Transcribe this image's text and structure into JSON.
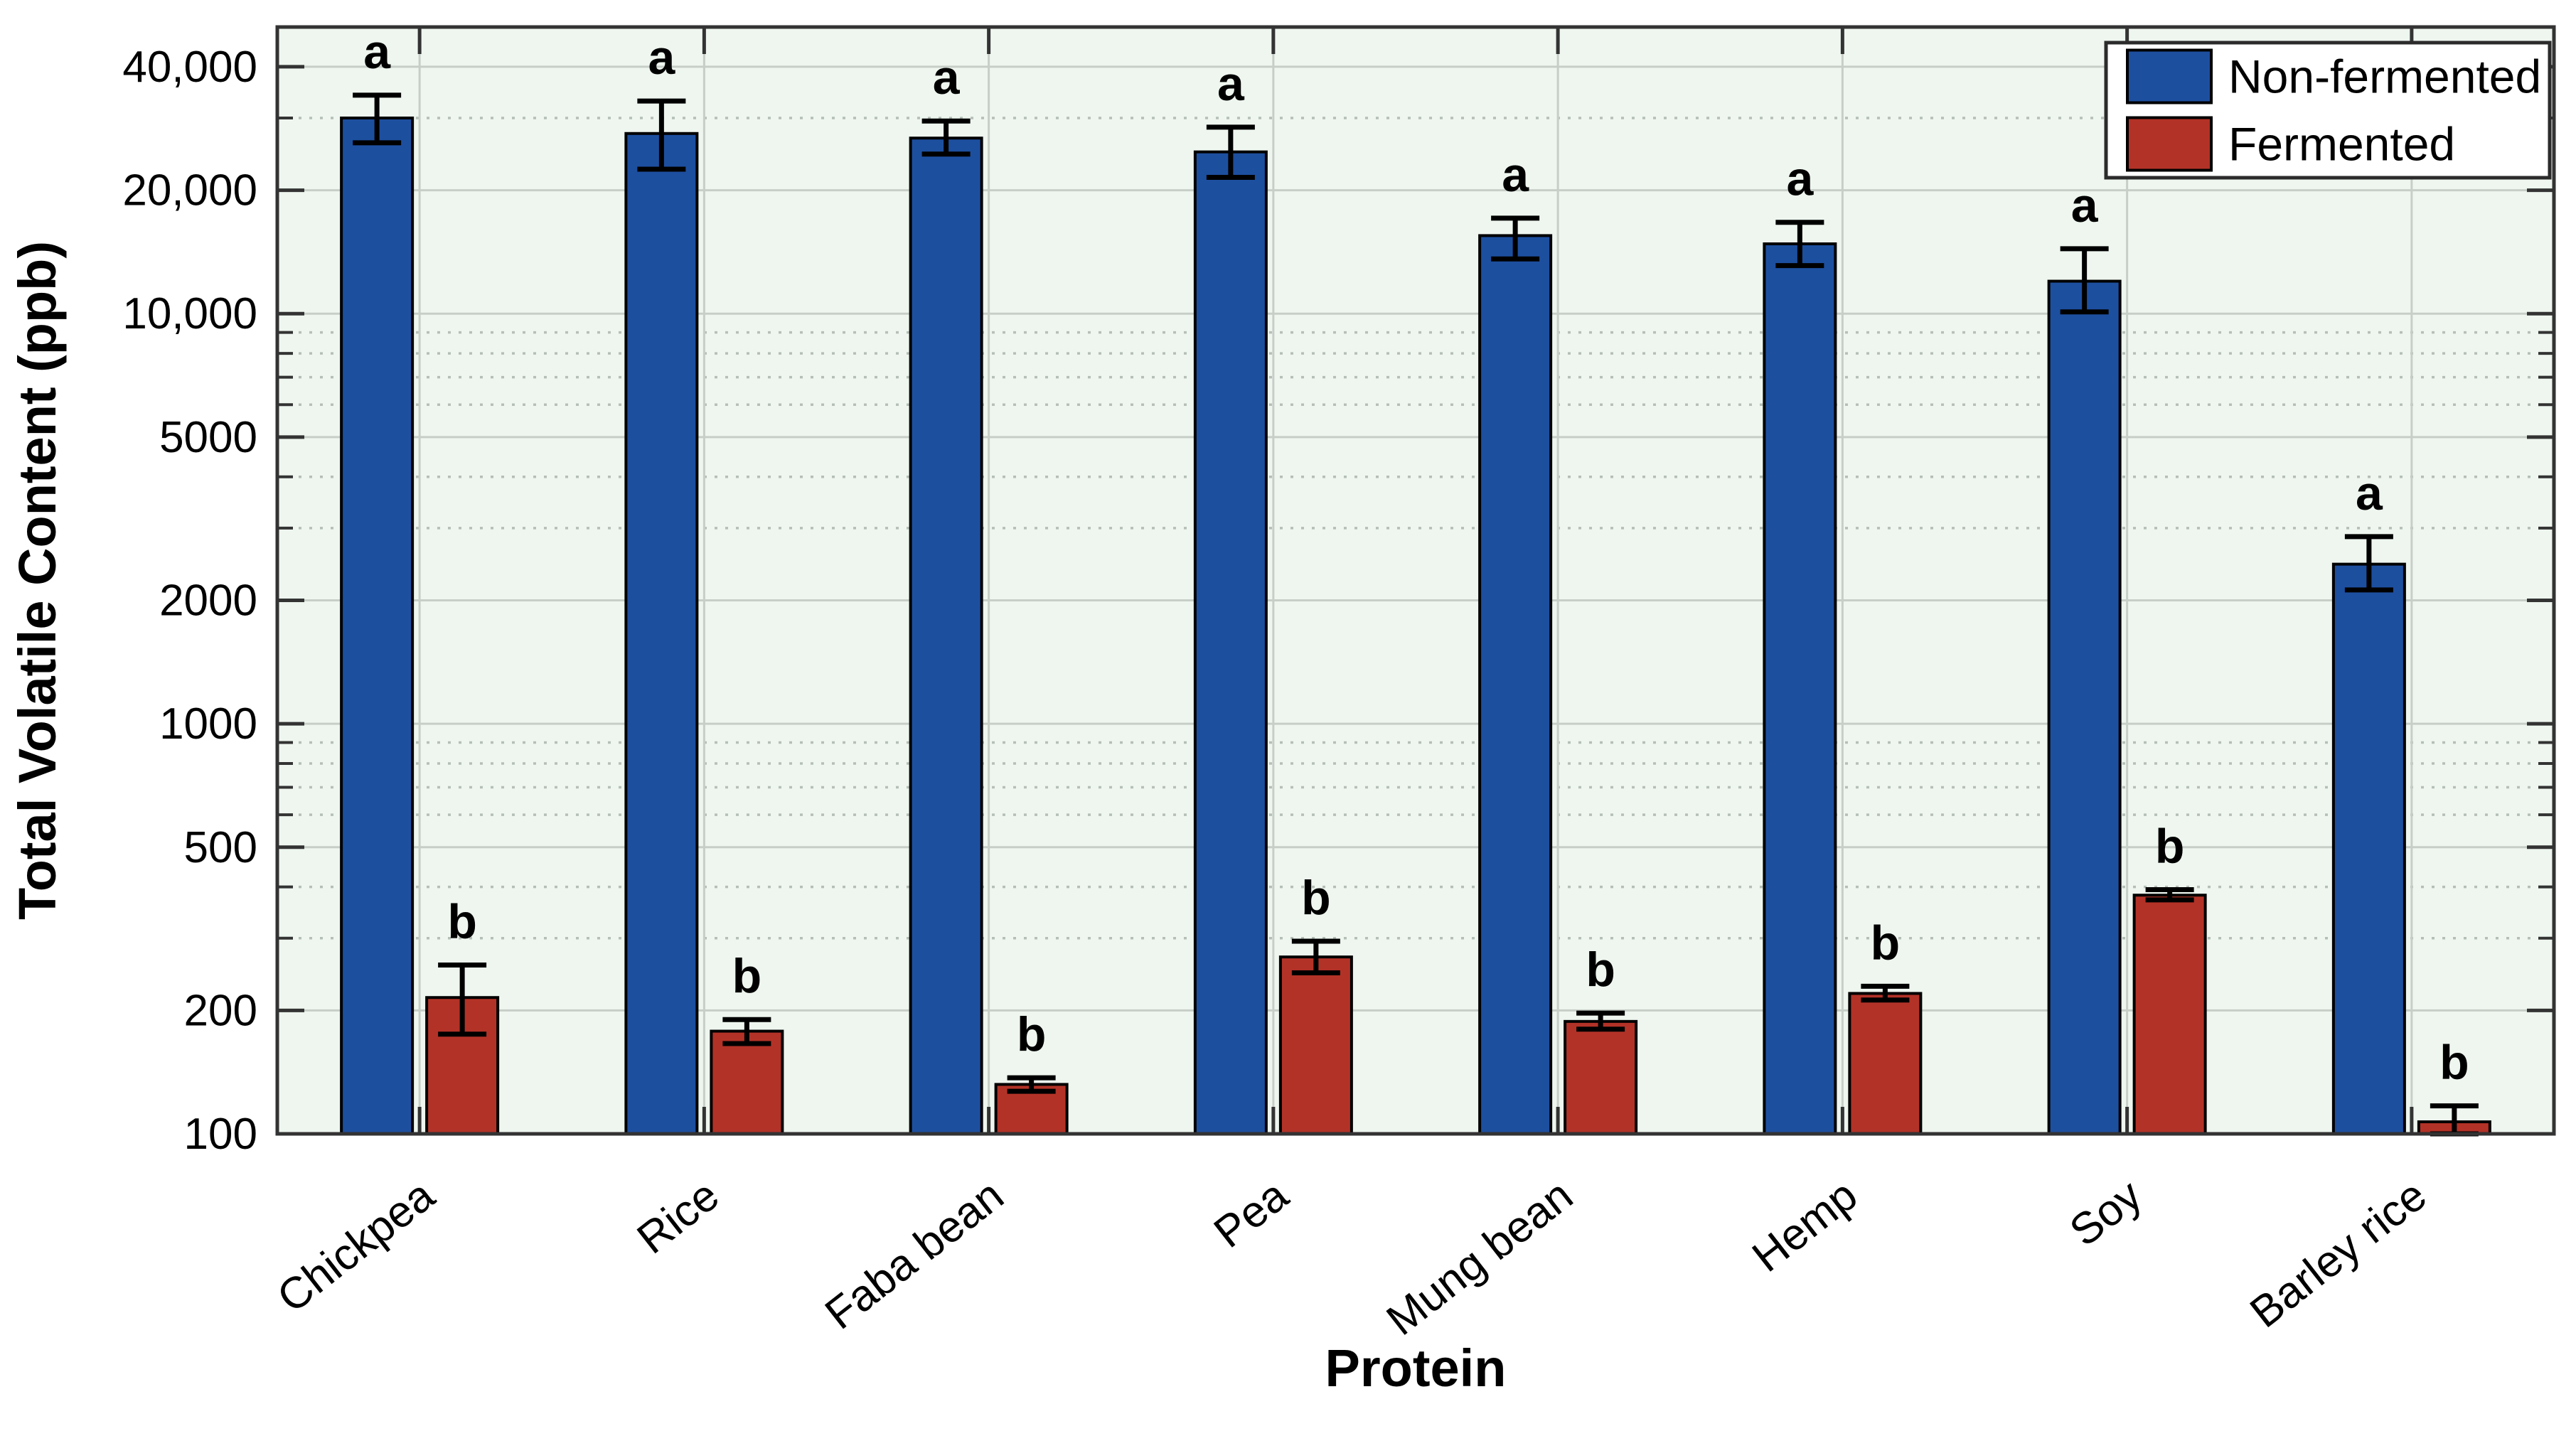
{
  "chart_data": {
    "type": "bar",
    "title": "",
    "xlabel": "Protein",
    "ylabel": "Total Volatile Content (ppb)",
    "yscale": "log",
    "ylim": [
      100,
      50000
    ],
    "grid": true,
    "categories": [
      "Chickpea",
      "Rice",
      "Faba bean",
      "Pea",
      "Mung bean",
      "Hemp",
      "Soy",
      "Barley rice"
    ],
    "series": [
      {
        "name": "Non-fermented",
        "color": "#1d4f9f",
        "letters": [
          "a",
          "a",
          "a",
          "a",
          "a",
          "a",
          "a",
          "a"
        ],
        "values": [
          30000,
          27500,
          26800,
          24800,
          15500,
          14800,
          12000,
          2450
        ],
        "err_low": [
          26100,
          22500,
          24500,
          21500,
          13600,
          13100,
          10100,
          2120
        ],
        "err_high": [
          34100,
          33000,
          29500,
          28500,
          17100,
          16700,
          14400,
          2860
        ]
      },
      {
        "name": "Fermented",
        "color": "#b33227",
        "letters": [
          "b",
          "b",
          "b",
          "b",
          "b",
          "b",
          "b",
          "b"
        ],
        "values": [
          215,
          178,
          132,
          270,
          188,
          220,
          382,
          107
        ],
        "err_low": [
          175,
          166,
          127,
          247,
          180,
          212,
          372,
          100
        ],
        "err_high": [
          258,
          190,
          137,
          295,
          197,
          229,
          394,
          117
        ]
      }
    ],
    "yticks": [
      {
        "value": 40000,
        "label": "40,000"
      },
      {
        "value": 20000,
        "label": "20,000"
      },
      {
        "value": 10000,
        "label": "10,000"
      },
      {
        "value": 5000,
        "label": "5000"
      },
      {
        "value": 2000,
        "label": "2000"
      },
      {
        "value": 1000,
        "label": "1000"
      },
      {
        "value": 500,
        "label": "500"
      },
      {
        "value": 200,
        "label": "200"
      },
      {
        "value": 100,
        "label": "100"
      }
    ],
    "minor_gridlines": [
      30000,
      9000,
      8000,
      7000,
      6000,
      4000,
      3000,
      900,
      800,
      700,
      600,
      400,
      300
    ],
    "legend": {
      "position": "top-right",
      "entries": [
        "Non-fermented",
        "Fermented"
      ]
    },
    "colors": {
      "plot_bg": "#eef6ef",
      "grid_major": "#c6cec7",
      "grid_minor": "#b6bfb7",
      "axis": "#333333",
      "bar_edge": "#000000",
      "error_bar": "#000000",
      "legend_bg": "#ffffff",
      "legend_border": "#2b2b2b",
      "text": "#000000"
    }
  }
}
